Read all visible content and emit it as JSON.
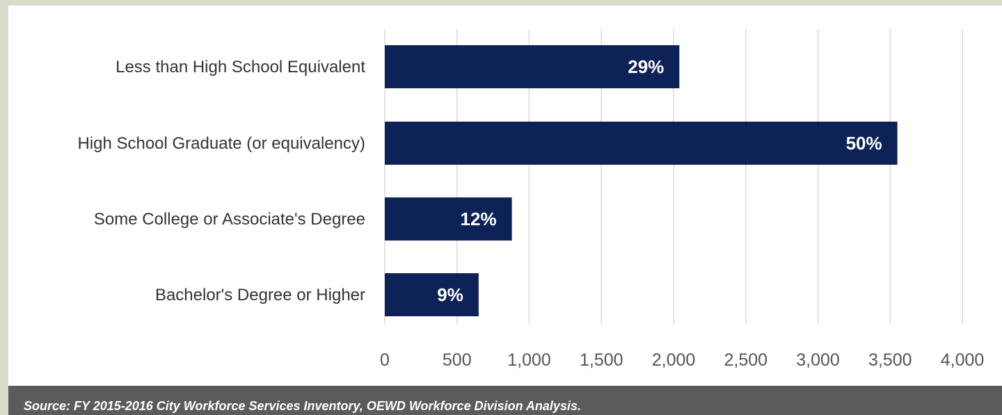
{
  "colors": {
    "bar": "#0d2257",
    "gridline": "#d9d9d9",
    "source_bar": "#5b5b5b",
    "frame": "#dcdccc"
  },
  "chart_data": {
    "type": "bar",
    "orientation": "horizontal",
    "title": "",
    "xlabel": "",
    "ylabel": "",
    "categories": [
      "Less than High School Equivalent",
      "High School Graduate (or equivalency)",
      "Some College or Associate's Degree",
      "Bachelor's Degree or Higher"
    ],
    "values": [
      2040,
      3550,
      880,
      650
    ],
    "data_labels": [
      "29%",
      "50%",
      "12%",
      "9%"
    ],
    "xlim": [
      0,
      4000
    ],
    "xticks": [
      0,
      500,
      1000,
      1500,
      2000,
      2500,
      3000,
      3500,
      4000
    ],
    "xtick_labels": [
      "0",
      "500",
      "1,000",
      "1,500",
      "2,000",
      "2,500",
      "3,000",
      "3,500",
      "4,000"
    ],
    "grid": "vertical",
    "legend": "none"
  },
  "source": {
    "text": "Source: FY 2015-2016 City Workforce Services Inventory, OEWD Workforce Division Analysis."
  }
}
